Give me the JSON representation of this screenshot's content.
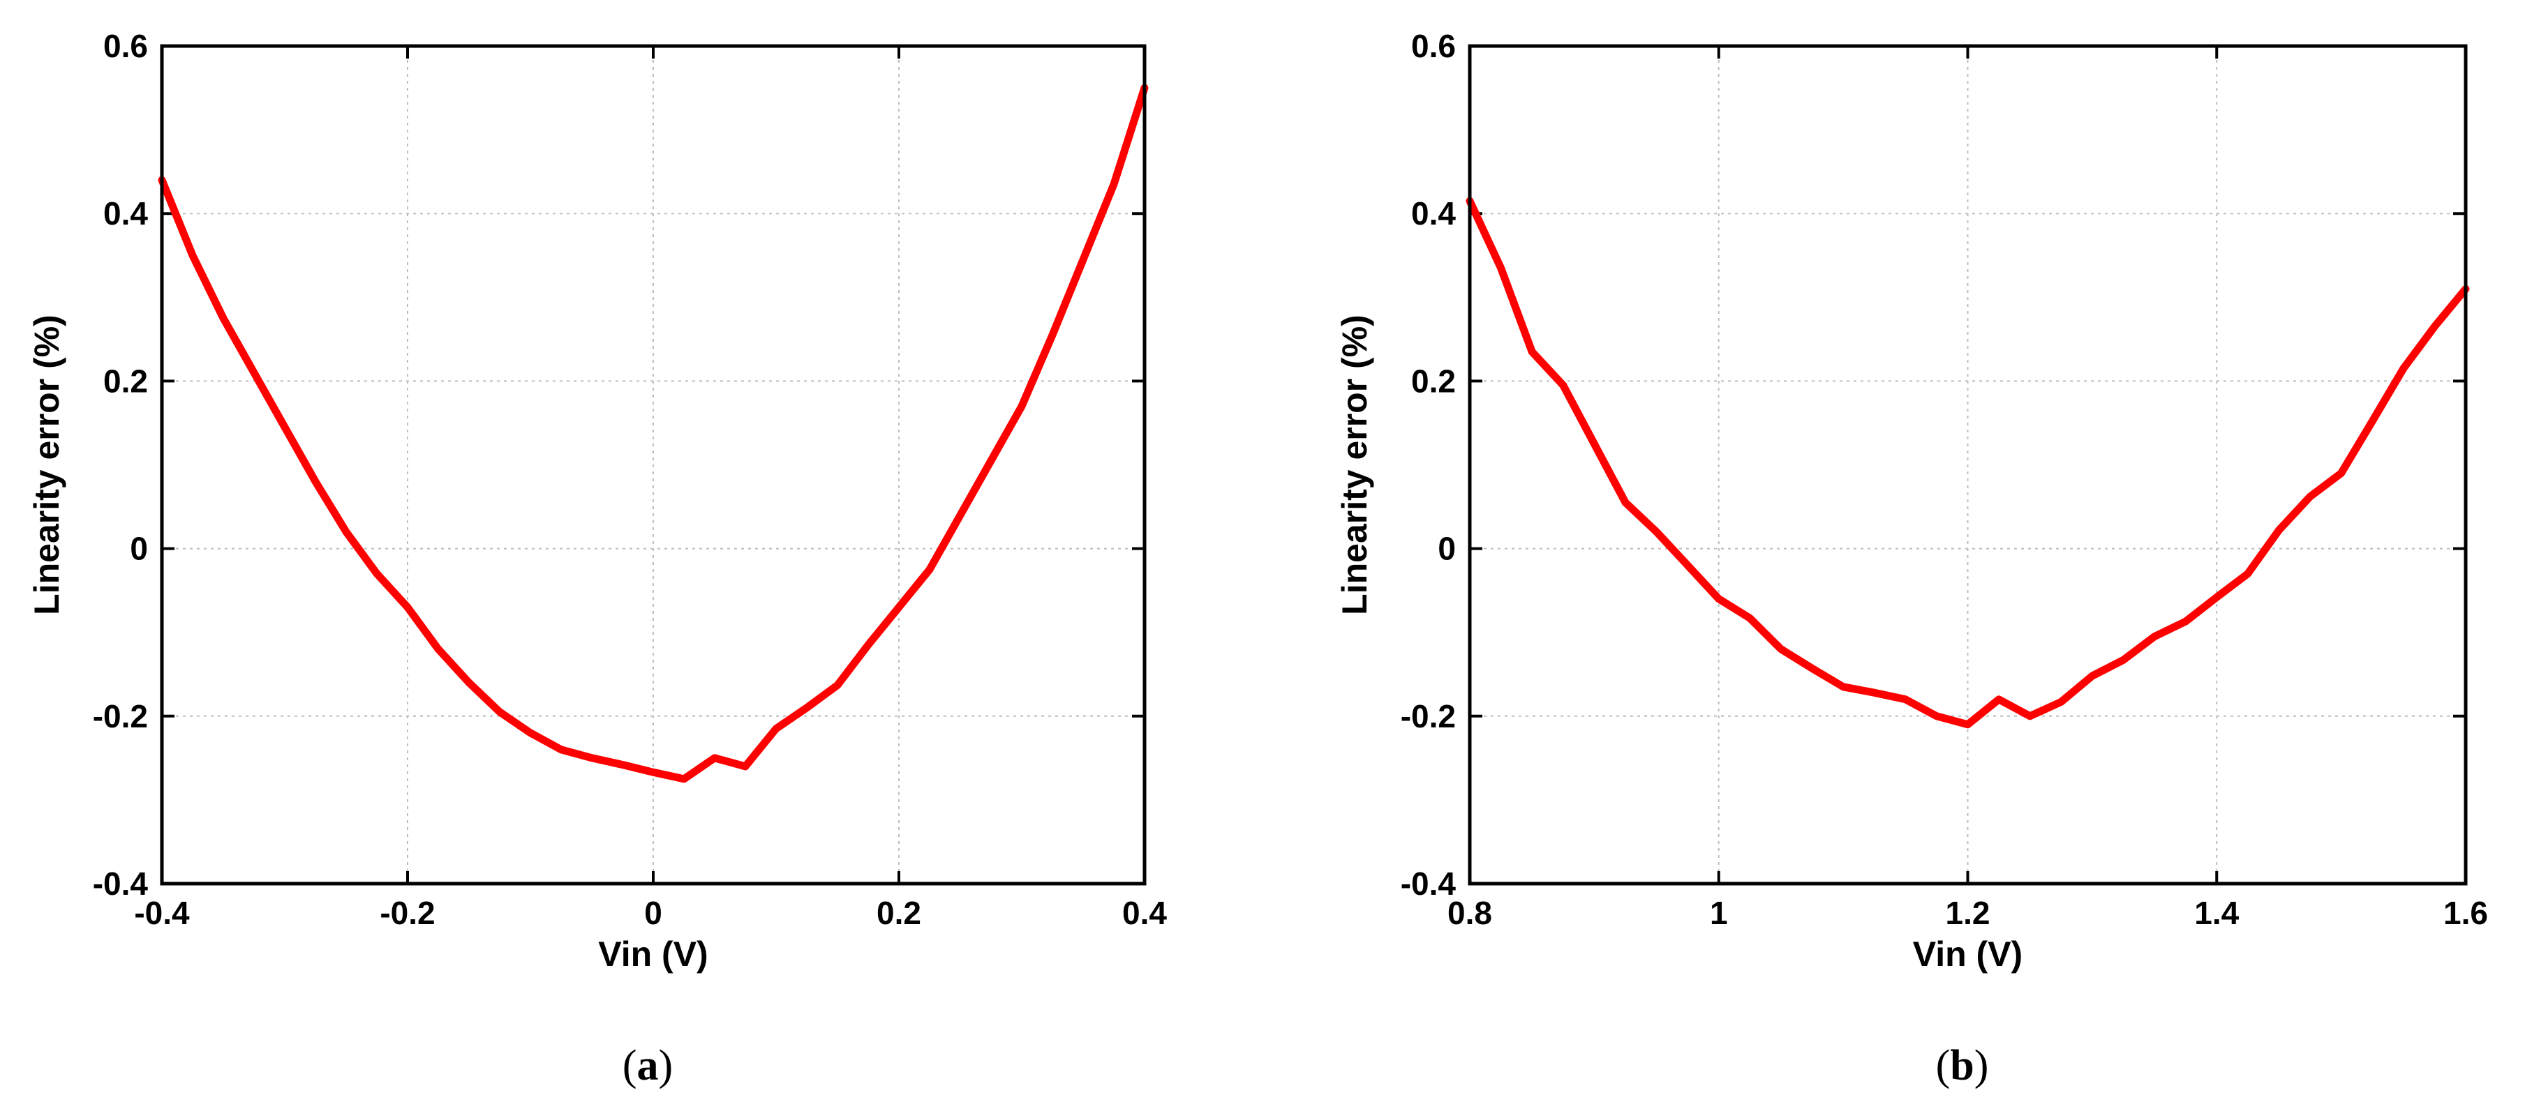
{
  "colors": {
    "line": "#ff0000",
    "grid": "#bdbdbd",
    "axis": "#000000"
  },
  "chart_data": [
    {
      "type": "line",
      "caption": {
        "open": "(",
        "letter": "a",
        "close": ")"
      },
      "xlabel": "Vin (V)",
      "ylabel": "Linearity error (%)",
      "xlim": [
        -0.4,
        0.4
      ],
      "ylim": [
        -0.4,
        0.6
      ],
      "xticks": [
        -0.4,
        -0.2,
        0,
        0.2,
        0.4
      ],
      "xtick_labels": [
        "-0.4",
        "-0.2",
        "0",
        "0.2",
        "0.4"
      ],
      "yticks": [
        -0.4,
        -0.2,
        0,
        0.2,
        0.4,
        0.6
      ],
      "ytick_labels": [
        "-0.4",
        "-0.2",
        "0",
        "0.2",
        "0.4",
        "0.6"
      ],
      "grid": true,
      "series": [
        {
          "x": [
            -0.4,
            -0.375,
            -0.35,
            -0.325,
            -0.3,
            -0.275,
            -0.25,
            -0.225,
            -0.2,
            -0.175,
            -0.15,
            -0.125,
            -0.1,
            -0.075,
            -0.05,
            -0.025,
            0,
            0.025,
            0.05,
            0.075,
            0.1,
            0.125,
            0.15,
            0.175,
            0.2,
            0.225,
            0.25,
            0.275,
            0.3,
            0.325,
            0.35,
            0.375,
            0.4
          ],
          "y": [
            0.44,
            0.35,
            0.275,
            0.21,
            0.145,
            0.08,
            0.02,
            -0.03,
            -0.07,
            -0.12,
            -0.16,
            -0.195,
            -0.22,
            -0.24,
            -0.25,
            -0.258,
            -0.267,
            -0.275,
            -0.25,
            -0.26,
            -0.215,
            -0.19,
            -0.163,
            -0.115,
            -0.07,
            -0.025,
            0.04,
            0.105,
            0.17,
            0.255,
            0.345,
            0.435,
            0.55
          ]
        }
      ]
    },
    {
      "type": "line",
      "caption": {
        "open": "(",
        "letter": "b",
        "close": ")"
      },
      "xlabel": "Vin (V)",
      "ylabel": "Linearity error (%)",
      "xlim": [
        0.8,
        1.6
      ],
      "ylim": [
        -0.4,
        0.6
      ],
      "xticks": [
        0.8,
        1.0,
        1.2,
        1.4,
        1.6
      ],
      "xtick_labels": [
        "0.8",
        "1",
        "1.2",
        "1.4",
        "1.6"
      ],
      "yticks": [
        -0.4,
        -0.2,
        0,
        0.2,
        0.4,
        0.6
      ],
      "ytick_labels": [
        "-0.4",
        "-0.2",
        "0",
        "0.2",
        "0.4",
        "0.6"
      ],
      "grid": true,
      "series": [
        {
          "x": [
            0.8,
            0.825,
            0.85,
            0.875,
            0.9,
            0.925,
            0.95,
            0.975,
            1.0,
            1.025,
            1.05,
            1.075,
            1.1,
            1.125,
            1.15,
            1.175,
            1.2,
            1.225,
            1.25,
            1.275,
            1.3,
            1.325,
            1.35,
            1.375,
            1.4,
            1.425,
            1.45,
            1.475,
            1.5,
            1.525,
            1.55,
            1.575,
            1.6
          ],
          "y": [
            0.415,
            0.335,
            0.235,
            0.195,
            0.125,
            0.055,
            0.02,
            -0.02,
            -0.06,
            -0.083,
            -0.12,
            -0.143,
            -0.165,
            -0.172,
            -0.18,
            -0.2,
            -0.21,
            -0.18,
            -0.2,
            -0.183,
            -0.152,
            -0.133,
            -0.105,
            -0.087,
            -0.058,
            -0.03,
            0.022,
            0.062,
            0.09,
            0.152,
            0.215,
            0.265,
            0.31
          ]
        }
      ]
    }
  ]
}
